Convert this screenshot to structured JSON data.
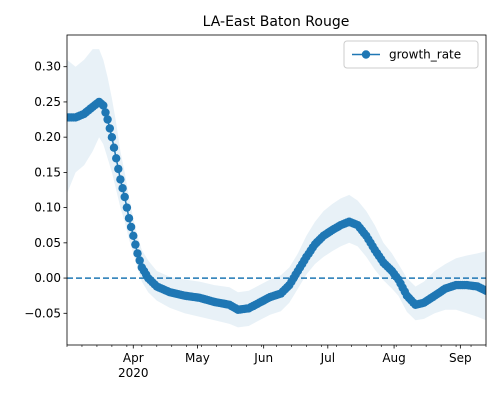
{
  "chart_data": {
    "type": "line",
    "title": "LA-East Baton Rouge",
    "xlabel": "",
    "ylabel": "",
    "x_range": [
      "2020-03-01",
      "2020-09-13"
    ],
    "ylim": [
      -0.095,
      0.345
    ],
    "x_ticks": [
      {
        "date": "2020-04-01",
        "label": "Apr",
        "sublabel": "2020"
      },
      {
        "date": "2020-05-01",
        "label": "May",
        "sublabel": ""
      },
      {
        "date": "2020-06-01",
        "label": "Jun",
        "sublabel": ""
      },
      {
        "date": "2020-07-01",
        "label": "Jul",
        "sublabel": ""
      },
      {
        "date": "2020-08-01",
        "label": "Aug",
        "sublabel": ""
      },
      {
        "date": "2020-09-01",
        "label": "Sep",
        "sublabel": ""
      }
    ],
    "y_ticks": [
      {
        "value": 0.3,
        "label": "0.30"
      },
      {
        "value": 0.25,
        "label": "0.25"
      },
      {
        "value": 0.2,
        "label": "0.20"
      },
      {
        "value": 0.15,
        "label": "0.15"
      },
      {
        "value": 0.1,
        "label": "0.10"
      },
      {
        "value": 0.05,
        "label": "0.05"
      },
      {
        "value": 0.0,
        "label": "0.00"
      },
      {
        "value": -0.05,
        "label": "−0.05"
      }
    ],
    "reference_line": {
      "y": 0,
      "style": "dashed"
    },
    "legend": {
      "placement": "top-right",
      "entries": [
        "growth_rate"
      ]
    },
    "series": [
      {
        "name": "growth_rate",
        "color": "#1f77b4",
        "band_color": "#1f77b4",
        "points": [
          {
            "x": "2020-03-01",
            "y": 0.228,
            "lo": 0.12,
            "hi": 0.31
          },
          {
            "x": "2020-03-05",
            "y": 0.228,
            "lo": 0.15,
            "hi": 0.3
          },
          {
            "x": "2020-03-09",
            "y": 0.233,
            "lo": 0.16,
            "hi": 0.31
          },
          {
            "x": "2020-03-13",
            "y": 0.243,
            "lo": 0.18,
            "hi": 0.325
          },
          {
            "x": "2020-03-16",
            "y": 0.25,
            "lo": 0.2,
            "hi": 0.325
          },
          {
            "x": "2020-03-18",
            "y": 0.245,
            "lo": 0.19,
            "hi": 0.31
          },
          {
            "x": "2020-03-20",
            "y": 0.225,
            "lo": 0.17,
            "hi": 0.285
          },
          {
            "x": "2020-03-22",
            "y": 0.2,
            "lo": 0.15,
            "hi": 0.255
          },
          {
            "x": "2020-03-24",
            "y": 0.17,
            "lo": 0.125,
            "hi": 0.22
          },
          {
            "x": "2020-03-26",
            "y": 0.14,
            "lo": 0.1,
            "hi": 0.18
          },
          {
            "x": "2020-03-28",
            "y": 0.115,
            "lo": 0.08,
            "hi": 0.15
          },
          {
            "x": "2020-03-30",
            "y": 0.085,
            "lo": 0.055,
            "hi": 0.115
          },
          {
            "x": "2020-04-01",
            "y": 0.06,
            "lo": 0.035,
            "hi": 0.085
          },
          {
            "x": "2020-04-03",
            "y": 0.035,
            "lo": 0.015,
            "hi": 0.06
          },
          {
            "x": "2020-04-05",
            "y": 0.015,
            "lo": -0.005,
            "hi": 0.04
          },
          {
            "x": "2020-04-08",
            "y": 0.0,
            "lo": -0.02,
            "hi": 0.025
          },
          {
            "x": "2020-04-12",
            "y": -0.012,
            "lo": -0.032,
            "hi": 0.01
          },
          {
            "x": "2020-04-18",
            "y": -0.02,
            "lo": -0.042,
            "hi": 0.002
          },
          {
            "x": "2020-04-25",
            "y": -0.025,
            "lo": -0.05,
            "hi": -0.002
          },
          {
            "x": "2020-05-02",
            "y": -0.028,
            "lo": -0.055,
            "hi": -0.005
          },
          {
            "x": "2020-05-09",
            "y": -0.034,
            "lo": -0.06,
            "hi": -0.01
          },
          {
            "x": "2020-05-16",
            "y": -0.038,
            "lo": -0.065,
            "hi": -0.013
          },
          {
            "x": "2020-05-20",
            "y": -0.045,
            "lo": -0.07,
            "hi": -0.02
          },
          {
            "x": "2020-05-25",
            "y": -0.043,
            "lo": -0.068,
            "hi": -0.018
          },
          {
            "x": "2020-05-30",
            "y": -0.035,
            "lo": -0.06,
            "hi": -0.01
          },
          {
            "x": "2020-06-04",
            "y": -0.027,
            "lo": -0.052,
            "hi": -0.002
          },
          {
            "x": "2020-06-09",
            "y": -0.022,
            "lo": -0.047,
            "hi": 0.004
          },
          {
            "x": "2020-06-13",
            "y": -0.01,
            "lo": -0.035,
            "hi": 0.015
          },
          {
            "x": "2020-06-17",
            "y": 0.01,
            "lo": -0.015,
            "hi": 0.035
          },
          {
            "x": "2020-06-21",
            "y": 0.03,
            "lo": 0.005,
            "hi": 0.06
          },
          {
            "x": "2020-06-25",
            "y": 0.048,
            "lo": 0.02,
            "hi": 0.08
          },
          {
            "x": "2020-06-29",
            "y": 0.06,
            "lo": 0.03,
            "hi": 0.095
          },
          {
            "x": "2020-07-03",
            "y": 0.068,
            "lo": 0.038,
            "hi": 0.105
          },
          {
            "x": "2020-07-07",
            "y": 0.075,
            "lo": 0.045,
            "hi": 0.113
          },
          {
            "x": "2020-07-11",
            "y": 0.08,
            "lo": 0.05,
            "hi": 0.118
          },
          {
            "x": "2020-07-15",
            "y": 0.075,
            "lo": 0.045,
            "hi": 0.11
          },
          {
            "x": "2020-07-19",
            "y": 0.06,
            "lo": 0.03,
            "hi": 0.095
          },
          {
            "x": "2020-07-23",
            "y": 0.04,
            "lo": 0.012,
            "hi": 0.075
          },
          {
            "x": "2020-07-27",
            "y": 0.022,
            "lo": -0.003,
            "hi": 0.05
          },
          {
            "x": "2020-07-31",
            "y": 0.01,
            "lo": -0.015,
            "hi": 0.035
          },
          {
            "x": "2020-08-03",
            "y": -0.002,
            "lo": -0.025,
            "hi": 0.02
          },
          {
            "x": "2020-08-07",
            "y": -0.025,
            "lo": -0.048,
            "hi": 0.0
          },
          {
            "x": "2020-08-11",
            "y": -0.038,
            "lo": -0.06,
            "hi": -0.012
          },
          {
            "x": "2020-08-15",
            "y": -0.035,
            "lo": -0.058,
            "hi": -0.005
          },
          {
            "x": "2020-08-20",
            "y": -0.025,
            "lo": -0.05,
            "hi": 0.01
          },
          {
            "x": "2020-08-25",
            "y": -0.015,
            "lo": -0.045,
            "hi": 0.02
          },
          {
            "x": "2020-08-30",
            "y": -0.01,
            "lo": -0.045,
            "hi": 0.028
          },
          {
            "x": "2020-09-04",
            "y": -0.01,
            "lo": -0.05,
            "hi": 0.032
          },
          {
            "x": "2020-09-09",
            "y": -0.012,
            "lo": -0.055,
            "hi": 0.035
          },
          {
            "x": "2020-09-13",
            "y": -0.018,
            "lo": -0.06,
            "hi": 0.038
          }
        ]
      }
    ]
  }
}
